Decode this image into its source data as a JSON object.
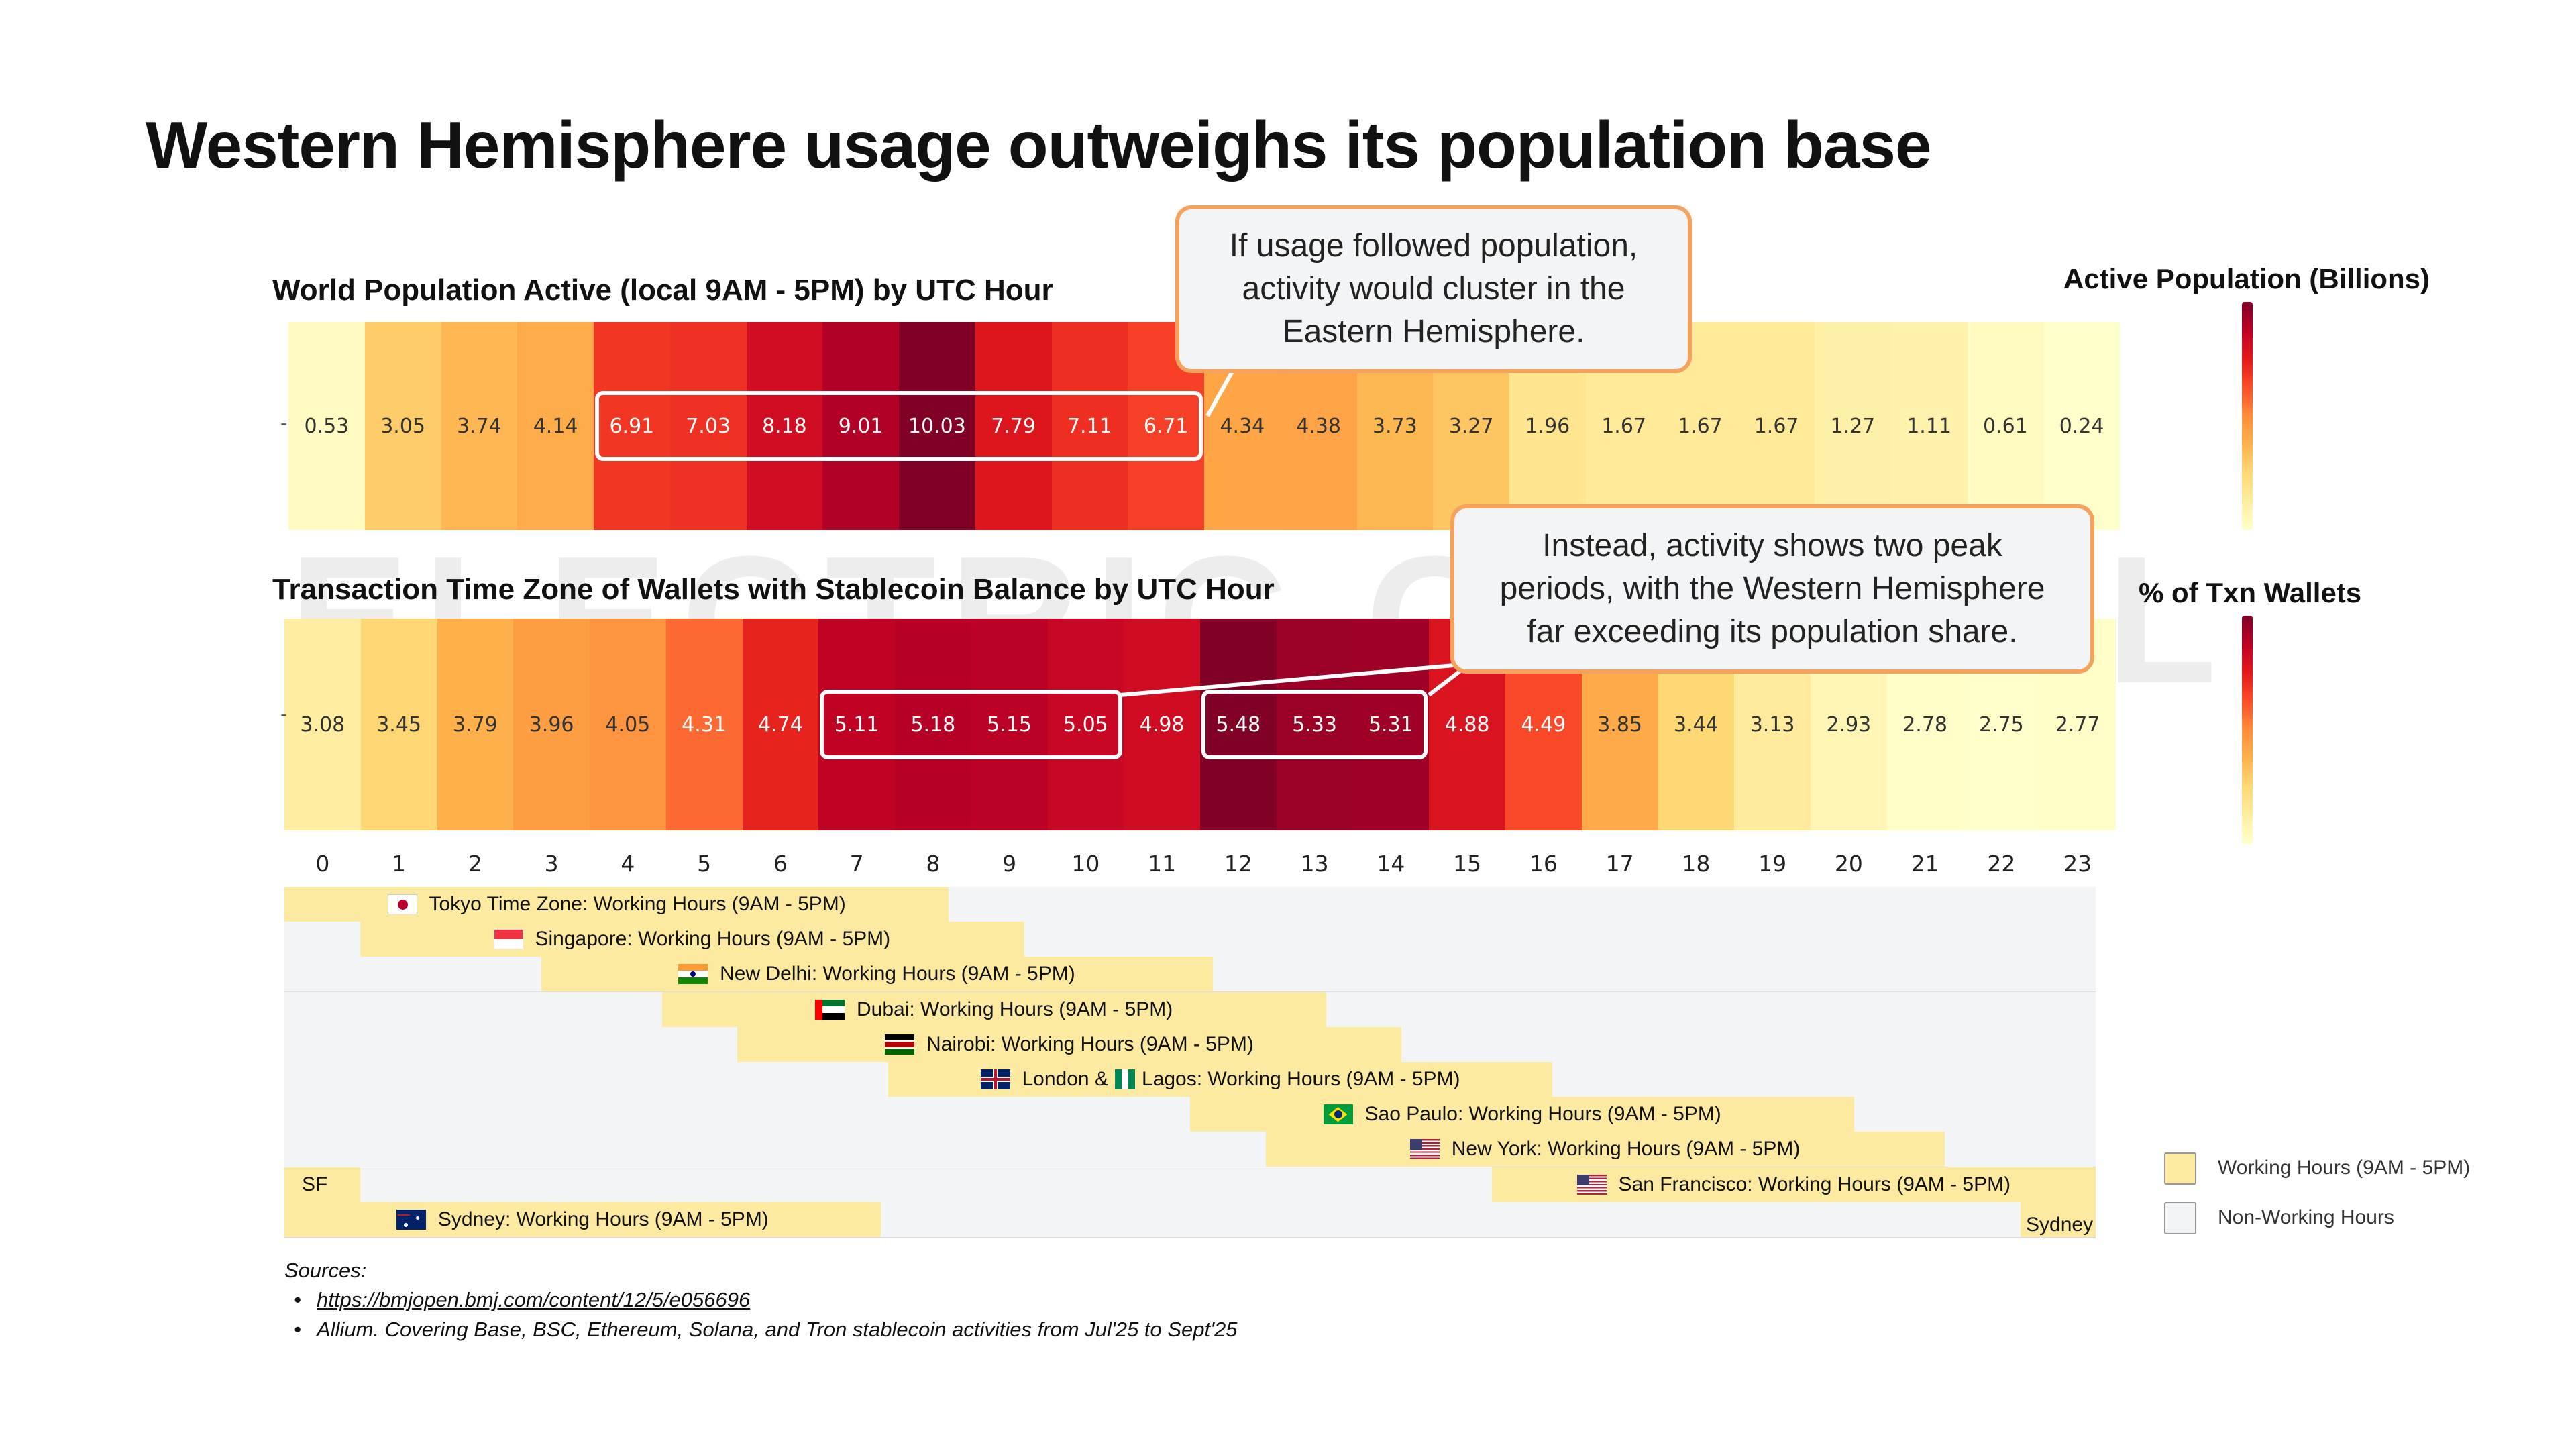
{
  "title": "Western Hemisphere usage outweighs its population base",
  "watermark": "ELECTRIC CAPITAL",
  "chart_data": [
    {
      "type": "heatmap",
      "title": "World Population Active (local 9AM - 5PM) by UTC Hour",
      "x": [
        0,
        1,
        2,
        3,
        4,
        5,
        6,
        7,
        8,
        9,
        10,
        11,
        12,
        13,
        14,
        15,
        16,
        17,
        18,
        19,
        20,
        21,
        22,
        23
      ],
      "values": [
        0.53,
        3.05,
        3.74,
        4.14,
        6.91,
        7.03,
        8.18,
        9.01,
        10.03,
        7.79,
        7.11,
        6.71,
        4.34,
        4.38,
        3.73,
        3.27,
        1.96,
        1.67,
        1.67,
        1.67,
        1.27,
        1.11,
        0.61,
        0.24
      ],
      "value_labels": [
        "0.53",
        "3.05",
        "3.74",
        "4.14",
        "6.91",
        "7.03",
        "8.18",
        "9.01",
        "10.03",
        "7.79",
        "7.11",
        "6.71",
        "4.34",
        "4.38",
        "3.73",
        "3.27",
        "1.96",
        "1.67",
        "1.67",
        "1.67",
        "1.27",
        "1.11",
        "0.61",
        "0.24"
      ],
      "colorbar_label": "Active Population (Billions)",
      "highlight_hours": [
        [
          4,
          11
        ]
      ]
    },
    {
      "type": "heatmap",
      "title": "Transaction Time Zone of Wallets with Stablecoin Balance by UTC Hour",
      "x": [
        0,
        1,
        2,
        3,
        4,
        5,
        6,
        7,
        8,
        9,
        10,
        11,
        12,
        13,
        14,
        15,
        16,
        17,
        18,
        19,
        20,
        21,
        22,
        23
      ],
      "values": [
        3.08,
        3.45,
        3.79,
        3.96,
        4.05,
        4.31,
        4.74,
        5.11,
        5.18,
        5.15,
        5.05,
        4.98,
        5.48,
        5.33,
        5.31,
        4.88,
        4.49,
        3.85,
        3.44,
        3.13,
        2.93,
        2.78,
        2.75,
        2.77
      ],
      "value_labels": [
        "3.08",
        "3.45",
        "3.79",
        "3.96",
        "4.05",
        "4.31",
        "4.74",
        "5.11",
        "5.18",
        "5.15",
        "5.05",
        "4.98",
        "5.48",
        "5.33",
        "5.31",
        "4.88",
        "4.49",
        "3.85",
        "3.44",
        "3.13",
        "2.93",
        "2.78",
        "2.75",
        "2.77"
      ],
      "colorbar_label": "% of Txn Wallets",
      "highlight_hours": [
        [
          7,
          10
        ],
        [
          12,
          14
        ]
      ]
    }
  ],
  "callouts": {
    "top": [
      "If usage followed population,",
      "activity would cluster in the",
      "Eastern Hemisphere."
    ],
    "bottom": [
      "Instead, activity shows two peak",
      "periods, with the Western Hemisphere",
      "far exceeding its population share."
    ]
  },
  "x_axis_ticks": [
    "0",
    "1",
    "2",
    "3",
    "4",
    "5",
    "6",
    "7",
    "8",
    "9",
    "10",
    "11",
    "12",
    "13",
    "14",
    "15",
    "16",
    "17",
    "18",
    "19",
    "20",
    "21",
    "22",
    "23"
  ],
  "timezones": [
    {
      "label": "Tokyo Time Zone: Working Hours (9AM - 5PM)",
      "flag": "japan",
      "work": [
        [
          0,
          8.8
        ]
      ]
    },
    {
      "label": "Singapore: Working Hours (9AM - 5PM)",
      "flag": "singapore",
      "work": [
        [
          1,
          9.8
        ]
      ]
    },
    {
      "label": "New Delhi: Working Hours (9AM - 5PM)",
      "flag": "india",
      "work": [
        [
          3.4,
          12.3
        ]
      ]
    },
    {
      "label": "Dubai: Working Hours (9AM - 5PM)",
      "flag": "uae",
      "work": [
        [
          5,
          13.8
        ]
      ]
    },
    {
      "label": "Nairobi: Working Hours (9AM - 5PM)",
      "flag": "kenya",
      "work": [
        [
          6,
          14.8
        ]
      ]
    },
    {
      "label_parts": [
        "London &",
        "Lagos: Working Hours (9AM - 5PM)"
      ],
      "flag": "uk",
      "flag2": "nigeria",
      "work": [
        [
          8,
          16.8
        ]
      ]
    },
    {
      "label": "Sao Paulo: Working Hours (9AM - 5PM)",
      "flag": "brazil",
      "work": [
        [
          12,
          20.8
        ]
      ]
    },
    {
      "label": "New York: Working Hours (9AM - 5PM)",
      "flag": "usa",
      "work": [
        [
          13,
          22
        ]
      ]
    },
    {
      "label": "San Francisco: Working Hours (9AM - 5PM)",
      "flag": "usa",
      "work": [
        [
          0,
          1
        ],
        [
          16,
          24
        ]
      ],
      "side_label": "SF"
    },
    {
      "label": "Sydney: Working Hours (9AM - 5PM)",
      "flag": "australia",
      "work": [
        [
          0,
          7.9
        ],
        [
          23,
          24
        ]
      ],
      "side_label": "Sydney"
    }
  ],
  "legend": {
    "working": "Working Hours (9AM - 5PM)",
    "non_working": "Non-Working Hours"
  },
  "sources": {
    "heading": "Sources:",
    "items": [
      "https://bmjopen.bmj.com/content/12/5/e056696",
      "Allium. Covering Base, BSC, Ethereum, Solana, and Tron stablecoin activities from Jul'25 to Sept'25"
    ]
  },
  "colors": {
    "scale": [
      "#ffffcc",
      "#ffeda0",
      "#fed976",
      "#feb24c",
      "#fd8d3c",
      "#fc4e2a",
      "#e31a1c",
      "#bd0026",
      "#800026"
    ],
    "working": "#fdeaa1",
    "non_working": "#f3f4f6",
    "callout_border": "#f5a25d"
  }
}
